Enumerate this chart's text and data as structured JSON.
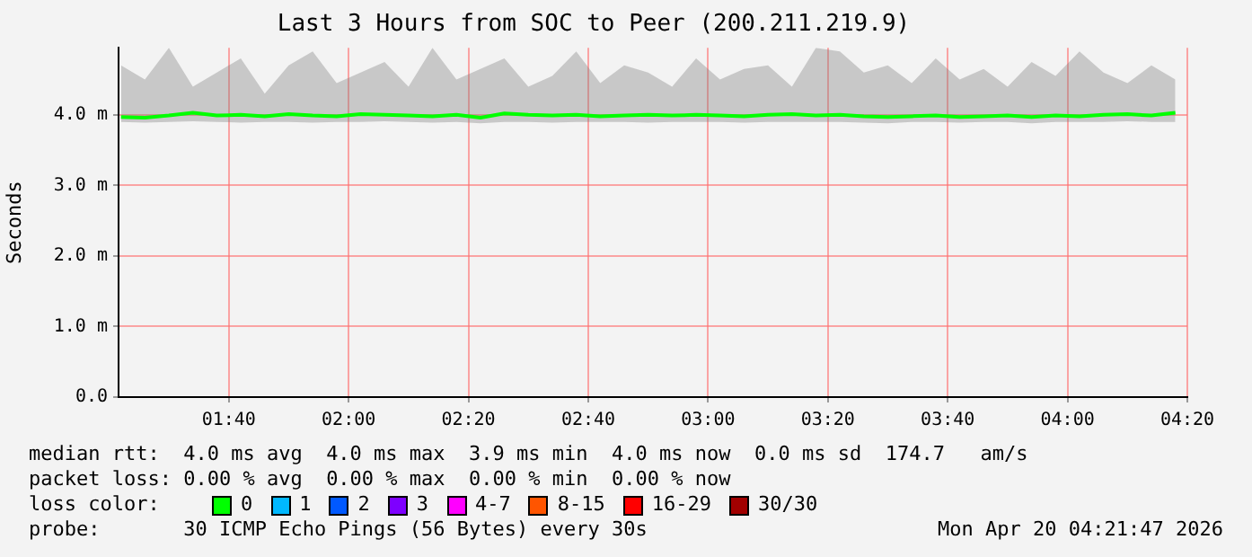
{
  "chart_data": {
    "type": "line",
    "title": "Last 3 Hours from SOC to Peer (200.211.219.9)",
    "ylabel": "Seconds",
    "x": [
      1.3667,
      1.4333,
      1.5,
      1.5667,
      1.6333,
      1.7,
      1.7667,
      1.8333,
      1.9,
      1.9667,
      2.0333,
      2.1,
      2.1667,
      2.2333,
      2.3,
      2.3667,
      2.4333,
      2.5,
      2.5667,
      2.6333,
      2.7,
      2.7667,
      2.8333,
      2.9,
      2.9667,
      3.0333,
      3.1,
      3.1667,
      3.2333,
      3.3,
      3.3667,
      3.4333,
      3.5,
      3.5667,
      3.6333,
      3.7,
      3.7667,
      3.8333,
      3.9,
      3.9667,
      4.0333,
      4.1,
      4.1667,
      4.2333,
      4.3
    ],
    "legend_title": "loss color:",
    "series": [
      {
        "name": "0",
        "color": "#00ff00",
        "values": [
          3.97,
          3.96,
          3.99,
          4.03,
          3.99,
          4.0,
          3.98,
          4.01,
          3.99,
          3.98,
          4.01,
          4.0,
          3.99,
          3.98,
          4.0,
          3.96,
          4.02,
          4.0,
          3.99,
          4.0,
          3.98,
          3.99,
          4.0,
          3.99,
          4.0,
          3.99,
          3.98,
          4.0,
          4.01,
          3.99,
          4.0,
          3.98,
          3.97,
          3.98,
          3.99,
          3.97,
          3.98,
          3.99,
          3.97,
          3.99,
          3.98,
          4.0,
          4.01,
          3.99,
          4.03
        ],
        "lower": [
          3.9,
          3.89,
          3.9,
          3.91,
          3.9,
          3.89,
          3.9,
          3.9,
          3.89,
          3.9,
          3.9,
          3.91,
          3.9,
          3.89,
          3.9,
          3.88,
          3.9,
          3.9,
          3.89,
          3.9,
          3.9,
          3.9,
          3.89,
          3.9,
          3.9,
          3.9,
          3.89,
          3.9,
          3.9,
          3.9,
          3.9,
          3.89,
          3.88,
          3.9,
          3.9,
          3.89,
          3.9,
          3.9,
          3.88,
          3.9,
          3.9,
          3.9,
          3.91,
          3.9,
          3.9
        ],
        "upper": [
          4.7,
          4.5,
          4.95,
          4.4,
          4.6,
          4.8,
          4.3,
          4.7,
          4.9,
          4.45,
          4.6,
          4.75,
          4.4,
          4.95,
          4.5,
          4.65,
          4.8,
          4.4,
          4.55,
          4.9,
          4.45,
          4.7,
          4.6,
          4.4,
          4.8,
          4.5,
          4.65,
          4.7,
          4.4,
          4.95,
          4.9,
          4.6,
          4.7,
          4.45,
          4.8,
          4.5,
          4.65,
          4.4,
          4.75,
          4.55,
          4.9,
          4.6,
          4.45,
          4.7,
          4.5
        ]
      },
      {
        "name": "1",
        "color": "#00b8ff",
        "values": [
          null,
          null,
          null,
          null,
          null,
          null,
          null,
          null,
          null,
          null,
          null,
          null,
          null,
          null,
          null,
          null,
          null,
          null,
          null,
          null,
          null,
          null,
          null,
          null,
          null,
          null,
          null,
          null,
          null,
          null,
          null,
          null,
          null,
          null,
          null,
          null,
          null,
          null,
          null,
          null,
          null,
          null,
          null,
          null,
          null
        ]
      },
      {
        "name": "2",
        "color": "#0059ff",
        "values": [
          null,
          null,
          null,
          null,
          null,
          null,
          null,
          null,
          null,
          null,
          null,
          null,
          null,
          null,
          null,
          null,
          null,
          null,
          null,
          null,
          null,
          null,
          null,
          null,
          null,
          null,
          null,
          null,
          null,
          null,
          null,
          null,
          null,
          null,
          null,
          null,
          null,
          null,
          null,
          null,
          null,
          null,
          null,
          null,
          null
        ]
      },
      {
        "name": "3",
        "color": "#7e00ff",
        "values": [
          null,
          null,
          null,
          null,
          null,
          null,
          null,
          null,
          null,
          null,
          null,
          null,
          null,
          null,
          null,
          null,
          null,
          null,
          null,
          null,
          null,
          null,
          null,
          null,
          null,
          null,
          null,
          null,
          null,
          null,
          null,
          null,
          null,
          null,
          null,
          null,
          null,
          null,
          null,
          null,
          null,
          null,
          null,
          null,
          null
        ]
      },
      {
        "name": "4-7",
        "color": "#ff00ff",
        "values": [
          null,
          null,
          null,
          null,
          null,
          null,
          null,
          null,
          null,
          null,
          null,
          null,
          null,
          null,
          null,
          null,
          null,
          null,
          null,
          null,
          null,
          null,
          null,
          null,
          null,
          null,
          null,
          null,
          null,
          null,
          null,
          null,
          null,
          null,
          null,
          null,
          null,
          null,
          null,
          null,
          null,
          null,
          null,
          null,
          null
        ]
      },
      {
        "name": "8-15",
        "color": "#ff5500",
        "values": [
          null,
          null,
          null,
          null,
          null,
          null,
          null,
          null,
          null,
          null,
          null,
          null,
          null,
          null,
          null,
          null,
          null,
          null,
          null,
          null,
          null,
          null,
          null,
          null,
          null,
          null,
          null,
          null,
          null,
          null,
          null,
          null,
          null,
          null,
          null,
          null,
          null,
          null,
          null,
          null,
          null,
          null,
          null,
          null,
          null
        ]
      },
      {
        "name": "16-29",
        "color": "#ff0000",
        "values": [
          null,
          null,
          null,
          null,
          null,
          null,
          null,
          null,
          null,
          null,
          null,
          null,
          null,
          null,
          null,
          null,
          null,
          null,
          null,
          null,
          null,
          null,
          null,
          null,
          null,
          null,
          null,
          null,
          null,
          null,
          null,
          null,
          null,
          null,
          null,
          null,
          null,
          null,
          null,
          null,
          null,
          null,
          null,
          null,
          null
        ]
      },
      {
        "name": "30/30",
        "color": "#a10000",
        "values": [
          null,
          null,
          null,
          null,
          null,
          null,
          null,
          null,
          null,
          null,
          null,
          null,
          null,
          null,
          null,
          null,
          null,
          null,
          null,
          null,
          null,
          null,
          null,
          null,
          null,
          null,
          null,
          null,
          null,
          null,
          null,
          null,
          null,
          null,
          null,
          null,
          null,
          null,
          null,
          null,
          null,
          null,
          null,
          null,
          null
        ]
      }
    ],
    "xlim": [
      1.36,
      4.3333
    ],
    "xticks": [
      {
        "value": 1.6667,
        "label": "01:40"
      },
      {
        "value": 2,
        "label": "02:00"
      },
      {
        "value": 2.3333,
        "label": "02:20"
      },
      {
        "value": 2.6667,
        "label": "02:40"
      },
      {
        "value": 3,
        "label": "03:00"
      },
      {
        "value": 3.3333,
        "label": "03:20"
      },
      {
        "value": 3.6667,
        "label": "03:40"
      },
      {
        "value": 4,
        "label": "04:00"
      },
      {
        "value": 4.3333,
        "label": "04:20"
      }
    ],
    "ylim": [
      0,
      4.95
    ],
    "yticks": [
      {
        "value": 0,
        "label": "0.0"
      },
      {
        "value": 1,
        "label": "1.0 m"
      },
      {
        "value": 2,
        "label": "2.0 m"
      },
      {
        "value": 3,
        "label": "3.0 m"
      },
      {
        "value": 4,
        "label": "4.0 m"
      }
    ],
    "grid": true,
    "legend": "bottom",
    "marker": "none",
    "line_style": "solid",
    "annotations": [
      "median rtt:  4.0 ms avg  4.0 ms max  3.9 ms min  4.0 ms now  0.0 ms sd  174.7   am/s",
      "packet loss: 0.00 % avg  0.00 % max  0.00 % min  0.00 % now",
      "probe:       30 ICMP Echo Pings (56 Bytes) every 30s",
      "Mon Apr 20 04:21:47 2026"
    ]
  }
}
